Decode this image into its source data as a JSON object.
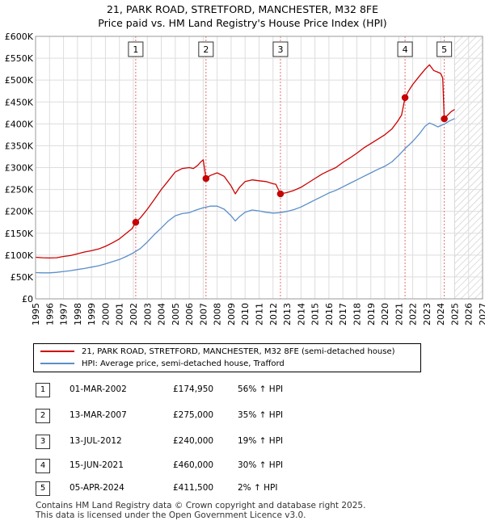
{
  "title_line1": "21, PARK ROAD, STRETFORD, MANCHESTER, M32 8FE",
  "title_line2": "Price paid vs. HM Land Registry's House Price Index (HPI)",
  "colors": {
    "property": "#cc0000",
    "hpi": "#5b8ec9",
    "grid": "#dddddd",
    "marker_line": "#e06060"
  },
  "chart_data": {
    "type": "line",
    "xlim": [
      1995,
      2027
    ],
    "ylim": [
      0,
      600000
    ],
    "yticks": [
      0,
      50000,
      100000,
      150000,
      200000,
      250000,
      300000,
      350000,
      400000,
      450000,
      500000,
      550000,
      600000
    ],
    "ytick_labels": [
      "£0",
      "£50K",
      "£100K",
      "£150K",
      "£200K",
      "£250K",
      "£300K",
      "£350K",
      "£400K",
      "£450K",
      "£500K",
      "£550K",
      "£600K"
    ],
    "xtick_labels": [
      "1995",
      "1996",
      "1997",
      "1998",
      "1999",
      "2000",
      "2001",
      "2002",
      "2003",
      "2004",
      "2005",
      "2006",
      "2007",
      "2008",
      "2009",
      "2010",
      "2011",
      "2012",
      "2013",
      "2014",
      "2015",
      "2016",
      "2017",
      "2018",
      "2019",
      "2020",
      "2021",
      "2022",
      "2023",
      "2024",
      "2025",
      "2026",
      "2027"
    ],
    "forecast_start": 2025.0,
    "series": [
      {
        "name": "21, PARK ROAD, STRETFORD, MANCHESTER, M32 8FE (semi-detached house)",
        "points": [
          [
            1995.0,
            95000
          ],
          [
            1995.5,
            94000
          ],
          [
            1996.0,
            93500
          ],
          [
            1996.5,
            94000
          ],
          [
            1997.0,
            97000
          ],
          [
            1997.5,
            99000
          ],
          [
            1998.0,
            103000
          ],
          [
            1998.5,
            107000
          ],
          [
            1999.0,
            110000
          ],
          [
            1999.5,
            114000
          ],
          [
            2000.0,
            120000
          ],
          [
            2000.5,
            128000
          ],
          [
            2001.0,
            137000
          ],
          [
            2001.5,
            150000
          ],
          [
            2001.9,
            160000
          ],
          [
            2002.17,
            174950
          ],
          [
            2002.5,
            185000
          ],
          [
            2003.0,
            205000
          ],
          [
            2003.5,
            227000
          ],
          [
            2004.0,
            250000
          ],
          [
            2004.5,
            270000
          ],
          [
            2005.0,
            290000
          ],
          [
            2005.5,
            298000
          ],
          [
            2006.0,
            300000
          ],
          [
            2006.3,
            298000
          ],
          [
            2006.6,
            305000
          ],
          [
            2006.8,
            312000
          ],
          [
            2007.0,
            318000
          ],
          [
            2007.2,
            275000
          ],
          [
            2007.5,
            282000
          ],
          [
            2008.0,
            288000
          ],
          [
            2008.5,
            280000
          ],
          [
            2009.0,
            258000
          ],
          [
            2009.3,
            240000
          ],
          [
            2009.6,
            255000
          ],
          [
            2010.0,
            268000
          ],
          [
            2010.5,
            272000
          ],
          [
            2011.0,
            270000
          ],
          [
            2011.5,
            268000
          ],
          [
            2012.0,
            263000
          ],
          [
            2012.2,
            262000
          ],
          [
            2012.53,
            240000
          ],
          [
            2013.0,
            243000
          ],
          [
            2013.5,
            248000
          ],
          [
            2014.0,
            255000
          ],
          [
            2014.5,
            265000
          ],
          [
            2015.0,
            275000
          ],
          [
            2015.5,
            285000
          ],
          [
            2016.0,
            293000
          ],
          [
            2016.5,
            300000
          ],
          [
            2017.0,
            312000
          ],
          [
            2017.5,
            322000
          ],
          [
            2018.0,
            333000
          ],
          [
            2018.5,
            345000
          ],
          [
            2019.0,
            355000
          ],
          [
            2019.5,
            365000
          ],
          [
            2020.0,
            375000
          ],
          [
            2020.5,
            388000
          ],
          [
            2020.9,
            405000
          ],
          [
            2021.2,
            420000
          ],
          [
            2021.45,
            460000
          ],
          [
            2021.7,
            475000
          ],
          [
            2022.0,
            490000
          ],
          [
            2022.5,
            510000
          ],
          [
            2022.9,
            525000
          ],
          [
            2023.2,
            535000
          ],
          [
            2023.5,
            522000
          ],
          [
            2023.8,
            518000
          ],
          [
            2024.0,
            515000
          ],
          [
            2024.15,
            505000
          ],
          [
            2024.26,
            411500
          ],
          [
            2024.5,
            420000
          ],
          [
            2024.75,
            428000
          ],
          [
            2025.0,
            433000
          ]
        ]
      },
      {
        "name": "HPI: Average price, semi-detached house, Trafford",
        "points": [
          [
            1995.0,
            60000
          ],
          [
            1995.5,
            59500
          ],
          [
            1996.0,
            59500
          ],
          [
            1996.5,
            60500
          ],
          [
            1997.0,
            62500
          ],
          [
            1997.5,
            64500
          ],
          [
            1998.0,
            67000
          ],
          [
            1998.5,
            69500
          ],
          [
            1999.0,
            72500
          ],
          [
            1999.5,
            75500
          ],
          [
            2000.0,
            80000
          ],
          [
            2000.5,
            85000
          ],
          [
            2001.0,
            90000
          ],
          [
            2001.5,
            97000
          ],
          [
            2002.0,
            105000
          ],
          [
            2002.5,
            115000
          ],
          [
            2003.0,
            130000
          ],
          [
            2003.5,
            147000
          ],
          [
            2004.0,
            162000
          ],
          [
            2004.5,
            178000
          ],
          [
            2005.0,
            190000
          ],
          [
            2005.5,
            195000
          ],
          [
            2006.0,
            197000
          ],
          [
            2006.5,
            203000
          ],
          [
            2007.0,
            208000
          ],
          [
            2007.5,
            212000
          ],
          [
            2008.0,
            212000
          ],
          [
            2008.5,
            205000
          ],
          [
            2009.0,
            190000
          ],
          [
            2009.3,
            178000
          ],
          [
            2009.6,
            188000
          ],
          [
            2010.0,
            198000
          ],
          [
            2010.5,
            203000
          ],
          [
            2011.0,
            201000
          ],
          [
            2011.5,
            198000
          ],
          [
            2012.0,
            196000
          ],
          [
            2012.5,
            197000
          ],
          [
            2013.0,
            200000
          ],
          [
            2013.5,
            204000
          ],
          [
            2014.0,
            210000
          ],
          [
            2014.5,
            218000
          ],
          [
            2015.0,
            226000
          ],
          [
            2015.5,
            234000
          ],
          [
            2016.0,
            242000
          ],
          [
            2016.5,
            248000
          ],
          [
            2017.0,
            256000
          ],
          [
            2017.5,
            264000
          ],
          [
            2018.0,
            272000
          ],
          [
            2018.5,
            280000
          ],
          [
            2019.0,
            288000
          ],
          [
            2019.5,
            296000
          ],
          [
            2020.0,
            303000
          ],
          [
            2020.5,
            313000
          ],
          [
            2021.0,
            328000
          ],
          [
            2021.5,
            345000
          ],
          [
            2022.0,
            360000
          ],
          [
            2022.5,
            378000
          ],
          [
            2022.9,
            395000
          ],
          [
            2023.2,
            402000
          ],
          [
            2023.5,
            398000
          ],
          [
            2023.8,
            393000
          ],
          [
            2024.0,
            396000
          ],
          [
            2024.3,
            400000
          ],
          [
            2024.6,
            406000
          ],
          [
            2025.0,
            412000
          ]
        ]
      }
    ],
    "sales": [
      {
        "label": "1",
        "x": 2002.17,
        "y": 174950
      },
      {
        "label": "2",
        "x": 2007.2,
        "y": 275000
      },
      {
        "label": "3",
        "x": 2012.53,
        "y": 240000
      },
      {
        "label": "4",
        "x": 2021.45,
        "y": 460000
      },
      {
        "label": "5",
        "x": 2024.26,
        "y": 411500
      }
    ]
  },
  "legend": {
    "property": "21, PARK ROAD, STRETFORD, MANCHESTER, M32 8FE (semi-detached house)",
    "hpi": "HPI: Average price, semi-detached house, Trafford"
  },
  "transactions": [
    {
      "num": "1",
      "date": "01-MAR-2002",
      "price": "£174,950",
      "hpi": "56% ↑ HPI"
    },
    {
      "num": "2",
      "date": "13-MAR-2007",
      "price": "£275,000",
      "hpi": "35% ↑ HPI"
    },
    {
      "num": "3",
      "date": "13-JUL-2012",
      "price": "£240,000",
      "hpi": "19% ↑ HPI"
    },
    {
      "num": "4",
      "date": "15-JUN-2021",
      "price": "£460,000",
      "hpi": "30% ↑ HPI"
    },
    {
      "num": "5",
      "date": "05-APR-2024",
      "price": "£411,500",
      "hpi": "2% ↑ HPI"
    }
  ],
  "footer_line1": "Contains HM Land Registry data © Crown copyright and database right 2025.",
  "footer_line2": "This data is licensed under the Open Government Licence v3.0."
}
